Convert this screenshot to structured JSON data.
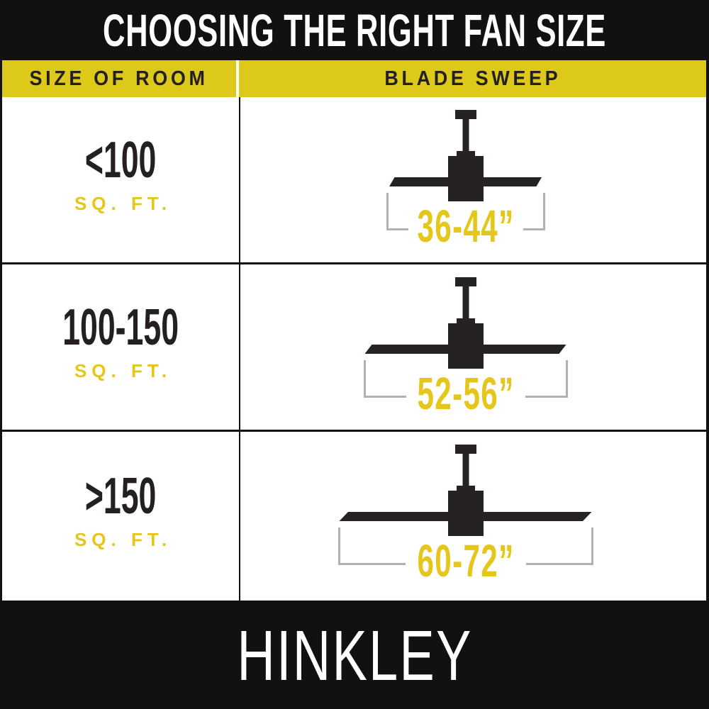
{
  "title": "CHOOSING THE RIGHT FAN SIZE",
  "brand": "HINKLEY",
  "colors": {
    "bar_black": "#121110",
    "fan_black": "#262122",
    "text_black": "#242021",
    "header_yellow": "#ddc91a",
    "accent_yellow": "#e5c61a",
    "bracket_gray": "#b2b0b0"
  },
  "table": {
    "columns": [
      "SIZE OF ROOM",
      "BLADE SWEEP"
    ],
    "rows": [
      {
        "room_size": "<100",
        "room_unit": "SQ. FT.",
        "blade_sweep": "36-44”"
      },
      {
        "room_size": "100-150",
        "room_unit": "SQ. FT.",
        "blade_sweep": "52-56”"
      },
      {
        "room_size": ">150",
        "room_unit": "SQ. FT.",
        "blade_sweep": "60-72”"
      }
    ]
  }
}
